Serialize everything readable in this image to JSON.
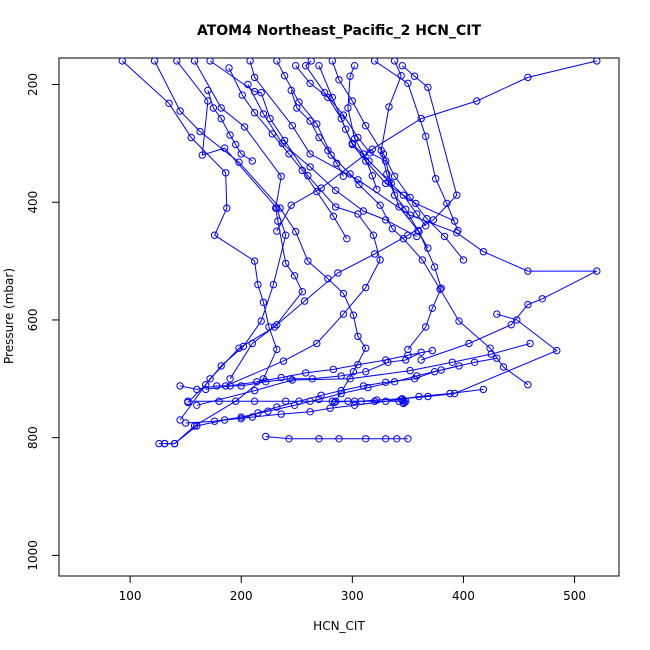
{
  "chart_data": {
    "type": "line",
    "title": "ATOM4 Northeast_Pacific_2 HCN_CIT",
    "xlabel": "HCN_CIT",
    "ylabel": "Pressure (mbar)",
    "xlim": [
      36,
      540
    ],
    "ylim": [
      1035,
      155
    ],
    "y_reversed": true,
    "xticks": [
      100,
      200,
      300,
      400,
      500
    ],
    "yticks": [
      200,
      400,
      600,
      800,
      1000
    ],
    "grid": false,
    "legend": "none",
    "colors": {
      "series": "#0000ff",
      "axis": "#000000",
      "background": "#ffffff"
    },
    "marker": "open-circle",
    "series": [
      {
        "x": [
          93,
          135,
          155,
          186,
          187,
          176,
          212,
          215,
          220,
          225,
          232,
          220,
          195,
          158,
          140,
          131,
          131
        ],
        "y": [
          160,
          232,
          290,
          350,
          410,
          456,
          500,
          540,
          570,
          612,
          650,
          700,
          738,
          780,
          810,
          810,
          810
        ]
      },
      {
        "x": [
          122,
          145,
          163,
          198,
          235,
          249,
          260,
          278,
          292,
          301,
          305,
          312,
          301,
          285
        ],
        "y": [
          160,
          245,
          280,
          332,
          410,
          450,
          500,
          530,
          555,
          592,
          628,
          648,
          688,
          738
        ]
      },
      {
        "x": [
          142,
          170,
          165,
          185,
          232,
          240,
          229,
          218,
          202,
          182,
          168,
          152
        ],
        "y": [
          160,
          228,
          320,
          308,
          410,
          456,
          540,
          602,
          645,
          678,
          710,
          740
        ]
      },
      {
        "x": [
          158,
          182,
          203,
          236,
          231,
          233,
          240,
          248,
          255,
          230,
          198,
          172,
          145
        ],
        "y": [
          160,
          240,
          272,
          356,
          410,
          432,
          504,
          525,
          552,
          612,
          648,
          700,
          770
        ]
      },
      {
        "x": [
          172,
          212,
          218,
          226,
          239,
          260,
          285,
          305,
          319,
          325,
          312,
          292,
          268,
          238,
          186
        ],
        "y": [
          160,
          212,
          214,
          258,
          295,
          355,
          408,
          420,
          456,
          498,
          545,
          590,
          640,
          670,
          712
        ]
      },
      {
        "x": [
          208,
          212,
          246,
          262,
          305,
          352,
          394,
          418,
          458,
          520,
          471,
          458,
          443,
          405,
          362
        ],
        "y": [
          160,
          188,
          270,
          318,
          362,
          422,
          452,
          484,
          517,
          517,
          564,
          574,
          608,
          640,
          668
        ]
      },
      {
        "x": [
          232,
          239,
          252,
          268,
          281,
          298,
          306,
          325,
          336,
          346,
          363,
          379,
          396,
          424,
          436,
          458
        ],
        "y": [
          160,
          185,
          230,
          267,
          320,
          352,
          370,
          405,
          445,
          462,
          498,
          548,
          602,
          648,
          680,
          710
        ]
      },
      {
        "x": [
          263,
          258,
          275,
          292,
          305,
          316,
          330,
          335,
          342,
          360,
          374,
          380,
          372,
          366,
          350
        ],
        "y": [
          160,
          168,
          214,
          252,
          290,
          316,
          330,
          368,
          408,
          450,
          510,
          546,
          580,
          612,
          650
        ]
      },
      {
        "x": [
          282,
          288,
          300,
          312,
          328,
          338,
          352,
          367,
          383,
          400
        ],
        "y": [
          160,
          192,
          228,
          270,
          318,
          356,
          392,
          428,
          458,
          498
        ]
      },
      {
        "x": [
          320,
          350,
          366,
          375,
          385,
          395
        ],
        "y": [
          160,
          198,
          288,
          360,
          402,
          448
        ]
      },
      {
        "x": [
          338,
          344,
          333,
          326,
          331,
          338,
          348,
          359,
          368
        ],
        "y": [
          160,
          185,
          238,
          312,
          352,
          388,
          412,
          448,
          478
        ]
      },
      {
        "x": [
          520,
          458,
          412,
          362,
          318,
          272,
          245,
          232
        ],
        "y": [
          160,
          188,
          228,
          258,
          310,
          376,
          405,
          449
        ]
      },
      {
        "x": [
          249,
          262,
          278,
          290,
          300,
          312,
          330,
          357,
          392
        ],
        "y": [
          168,
          198,
          222,
          258,
          302,
          330,
          368,
          402,
          432
        ]
      },
      {
        "x": [
          302,
          298,
          296,
          302,
          310,
          318,
          322
        ],
        "y": [
          168,
          186,
          240,
          292,
          318,
          355,
          378
        ]
      },
      {
        "x": [
          189,
          201,
          212,
          228,
          243,
          255,
          268,
          283,
          295
        ],
        "y": [
          172,
          218,
          248,
          284,
          318,
          346,
          382,
          424,
          462
        ]
      },
      {
        "x": [
          345,
          356,
          368,
          394,
          373,
          350,
          320,
          287,
          257,
          232,
          210,
          190
        ],
        "y": [
          168,
          186,
          205,
          388,
          430,
          456,
          488,
          520,
          568,
          608,
          640,
          700
        ]
      },
      {
        "x": [
          206,
          220,
          237,
          262,
          285,
          310,
          330,
          358
        ],
        "y": [
          200,
          250,
          300,
          340,
          380,
          415,
          430,
          458
        ]
      },
      {
        "x": [
          270,
          282,
          294,
          300,
          315,
          333,
          346,
          358,
          366
        ],
        "y": [
          168,
          222,
          276,
          300,
          330,
          365,
          388,
          420,
          440
        ]
      },
      {
        "x": [
          170,
          175,
          182,
          190,
          195,
          200,
          210
        ],
        "y": [
          210,
          240,
          258,
          286,
          302,
          318,
          330
        ]
      },
      {
        "x": [
          245,
          250,
          262,
          270,
          278,
          286,
          292
        ],
        "y": [
          210,
          240,
          262,
          290,
          312,
          334,
          356
        ]
      },
      {
        "x": [
          344,
          346,
          348,
          347,
          346
        ],
        "y": [
          735,
          737,
          738,
          740,
          742
        ]
      },
      {
        "x": [
          160,
          212,
          246,
          298,
          352,
          390,
          425,
          460
        ],
        "y": [
          745,
          720,
          702,
          700,
          686,
          672,
          658,
          640
        ]
      },
      {
        "x": [
          152,
          180,
          212,
          240,
          262,
          282,
          302,
          320,
          342
        ],
        "y": [
          738,
          738,
          738,
          738,
          738,
          738,
          738,
          738,
          738
        ]
      },
      {
        "x": [
          145,
          160,
          178,
          200,
          222,
          244,
          264,
          290,
          312,
          332,
          348,
          362
        ],
        "y": [
          712,
          718,
          712,
          712,
          705,
          700,
          700,
          695,
          688,
          672,
          668,
          655
        ]
      },
      {
        "x": [
          126,
          140,
          160,
          185,
          210,
          236,
          262,
          280,
          302,
          330,
          360,
          388,
          418
        ],
        "y": [
          810,
          810,
          780,
          770,
          765,
          760,
          756,
          750,
          745,
          738,
          730,
          725,
          718
        ]
      },
      {
        "x": [
          222,
          243,
          270,
          288,
          312,
          330,
          340,
          350
        ],
        "y": [
          798,
          802,
          802,
          802,
          802,
          802,
          802,
          802
        ]
      },
      {
        "x": [
          200,
          215,
          232,
          252,
          272,
          290,
          310,
          330,
          356,
          374,
          396
        ],
        "y": [
          768,
          758,
          748,
          738,
          728,
          720,
          712,
          706,
          700,
          688,
          678
        ]
      },
      {
        "x": [
          150,
          176,
          200,
          224,
          248,
          270,
          290,
          314,
          338,
          358,
          380,
          410,
          430
        ],
        "y": [
          775,
          772,
          765,
          755,
          745,
          735,
          725,
          715,
          705,
          695,
          685,
          672,
          665
        ]
      },
      {
        "x": [
          168,
          190,
          214,
          236,
          258,
          283,
          305,
          330,
          350,
          372
        ],
        "y": [
          718,
          712,
          705,
          698,
          690,
          684,
          676,
          668,
          660,
          652
        ]
      },
      {
        "x": [
          284,
          296,
          308,
          322,
          345,
          368,
          392,
          484,
          448,
          430
        ],
        "y": [
          740,
          738,
          738,
          736,
          734,
          730,
          725,
          652,
          600,
          590
        ]
      }
    ]
  }
}
